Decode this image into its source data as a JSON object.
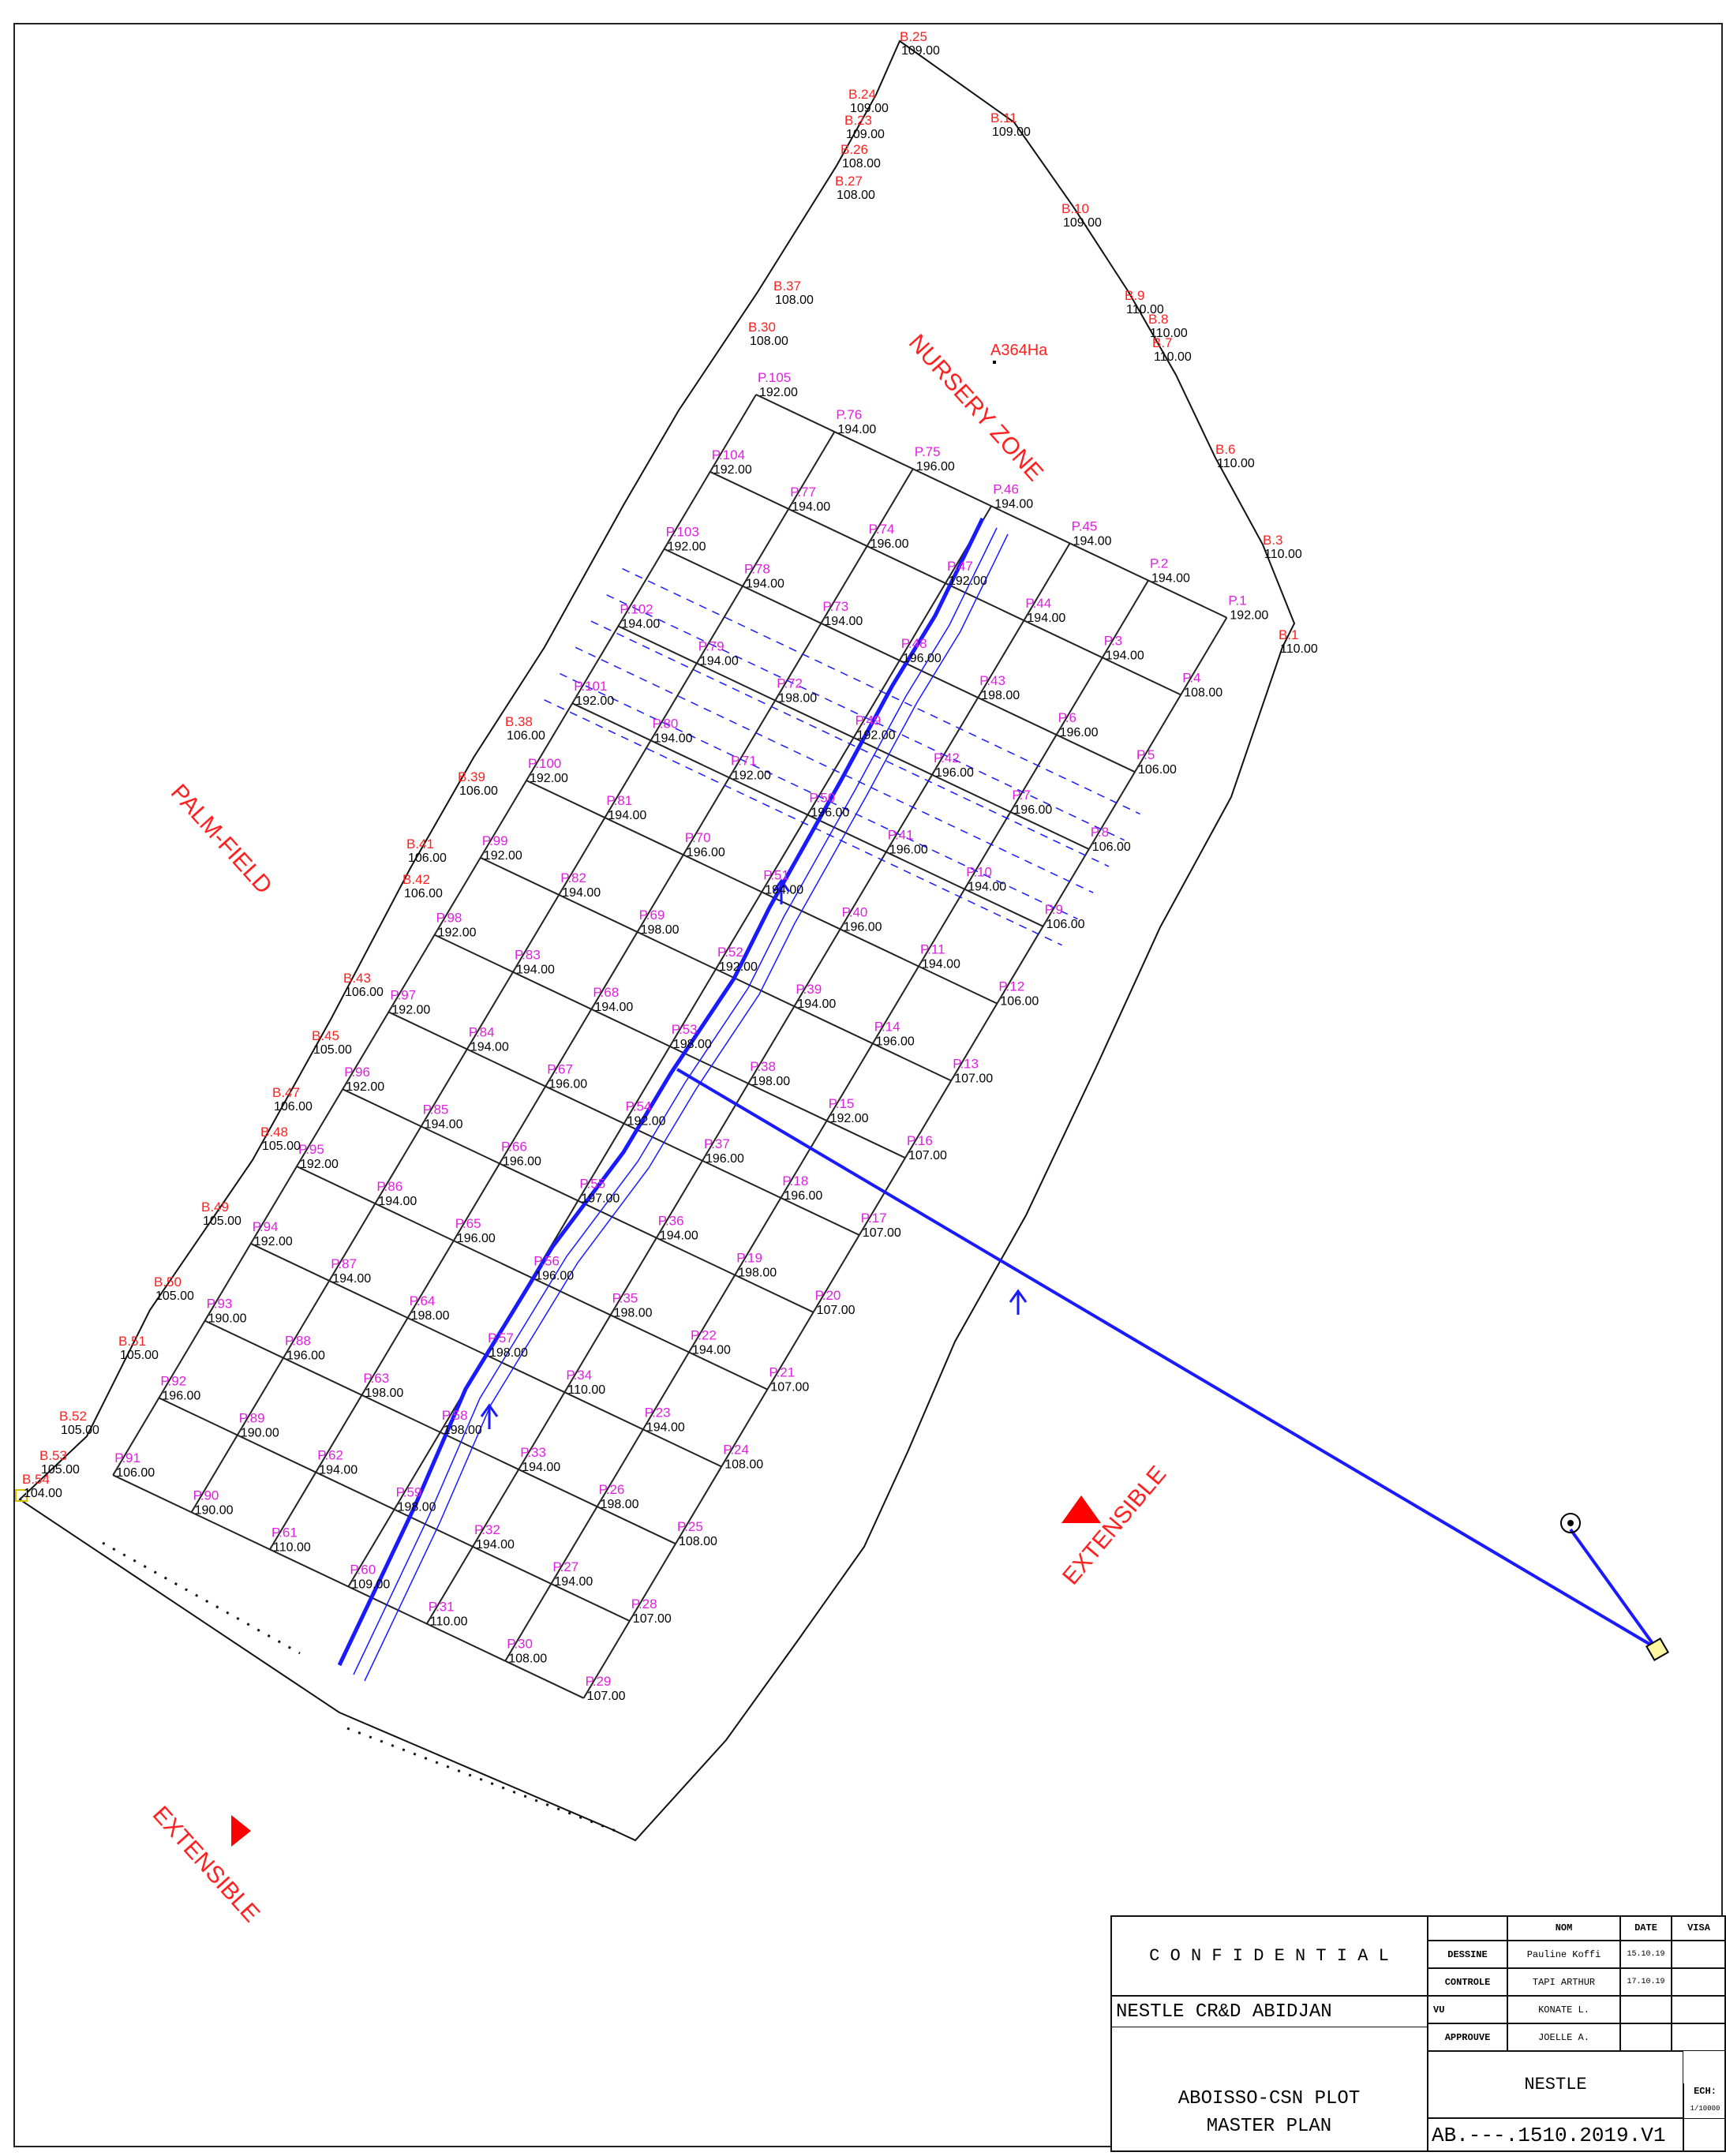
{
  "zones": {
    "nursery": "NURSERY ZONE",
    "palm_field": "PALM-FIELD",
    "extensible_right": "EXTENSIBLE",
    "extensible_left": "EXTENSIBLE",
    "area": "A364Ha"
  },
  "title_block": {
    "confidential": "C O N F I D E N T I A L",
    "client_site": "NESTLE CR&D ABIDJAN",
    "plot_title_1": "ABOISSO-CSN PLOT",
    "plot_title_2": "MASTER PLAN",
    "header_nom": "NOM",
    "header_date": "DATE",
    "header_visa": "VISA",
    "row1_role": "DESSINE",
    "row1_name": "Pauline Koffi",
    "row1_date": "15.10.19",
    "row2_role": "CONTROLE",
    "row2_name": "TAPI ARTHUR",
    "row2_date": "17.10.19",
    "row3_role": "VU",
    "row3_name": "KONATE L.",
    "row4_role": "APPROUVE",
    "row4_name": "JOELLE A.",
    "client": "NESTLE",
    "scale_label": "ECH:",
    "scale_value": "1/10000",
    "drawing_number": "AB.---.1510.2019.V1"
  },
  "boundary_points": [
    {
      "id": "B.25",
      "elev": "109.00"
    },
    {
      "id": "B.24",
      "elev": "109.00"
    },
    {
      "id": "B.23",
      "elev": "109.00"
    },
    {
      "id": "B.26",
      "elev": "108.00"
    },
    {
      "id": "B.27",
      "elev": "108.00"
    },
    {
      "id": "B.11",
      "elev": "109.00"
    },
    {
      "id": "B.10",
      "elev": "109.00"
    },
    {
      "id": "B.9",
      "elev": "110.00"
    },
    {
      "id": "B.8",
      "elev": "110.00"
    },
    {
      "id": "B.7",
      "elev": "110.00"
    },
    {
      "id": "B.6",
      "elev": "110.00"
    },
    {
      "id": "B.3",
      "elev": "110.00"
    },
    {
      "id": "B.1",
      "elev": "110.00"
    },
    {
      "id": "B.37",
      "elev": "108.00"
    },
    {
      "id": "B.30",
      "elev": "108.00"
    },
    {
      "id": "B.38",
      "elev": "106.00"
    },
    {
      "id": "B.39",
      "elev": "106.00"
    },
    {
      "id": "B.41",
      "elev": "106.00"
    },
    {
      "id": "B.42",
      "elev": "106.00"
    },
    {
      "id": "B.43",
      "elev": "106.00"
    },
    {
      "id": "B.45",
      "elev": "105.00"
    },
    {
      "id": "B.47",
      "elev": "106.00"
    },
    {
      "id": "B.48",
      "elev": "105.00"
    },
    {
      "id": "B.49",
      "elev": "105.00"
    },
    {
      "id": "B.50",
      "elev": "105.00"
    },
    {
      "id": "B.51",
      "elev": "105.00"
    },
    {
      "id": "B.52",
      "elev": "105.00"
    },
    {
      "id": "B.53",
      "elev": "105.00"
    },
    {
      "id": "B.54",
      "elev": "104.00"
    }
  ],
  "grid_points": [
    {
      "id": "P.105",
      "elev": "192.00"
    },
    {
      "id": "P.76",
      "elev": "194.00"
    },
    {
      "id": "P.75",
      "elev": "196.00"
    },
    {
      "id": "P.46",
      "elev": "194.00"
    },
    {
      "id": "P.45",
      "elev": "194.00"
    },
    {
      "id": "P.2",
      "elev": "194.00"
    },
    {
      "id": "P.1",
      "elev": "192.00"
    },
    {
      "id": "P.104",
      "elev": "192.00"
    },
    {
      "id": "P.77",
      "elev": "194.00"
    },
    {
      "id": "P.74",
      "elev": "196.00"
    },
    {
      "id": "P.47",
      "elev": "192.00"
    },
    {
      "id": "P.44",
      "elev": "194.00"
    },
    {
      "id": "P.3",
      "elev": "194.00"
    },
    {
      "id": "P.4",
      "elev": "108.00"
    },
    {
      "id": "P.103",
      "elev": "192.00"
    },
    {
      "id": "P.78",
      "elev": "194.00"
    },
    {
      "id": "P.73",
      "elev": "194.00"
    },
    {
      "id": "P.48",
      "elev": "196.00"
    },
    {
      "id": "P.43",
      "elev": "198.00"
    },
    {
      "id": "P.6",
      "elev": "196.00"
    },
    {
      "id": "P.5",
      "elev": "106.00"
    },
    {
      "id": "P.102",
      "elev": "194.00"
    },
    {
      "id": "P.79",
      "elev": "194.00"
    },
    {
      "id": "P.72",
      "elev": "198.00"
    },
    {
      "id": "P.49",
      "elev": "192.00"
    },
    {
      "id": "P.42",
      "elev": "196.00"
    },
    {
      "id": "P.7",
      "elev": "196.00"
    },
    {
      "id": "P.8",
      "elev": "106.00"
    },
    {
      "id": "P.101",
      "elev": "192.00"
    },
    {
      "id": "P.80",
      "elev": "194.00"
    },
    {
      "id": "P.71",
      "elev": "192.00"
    },
    {
      "id": "P.50",
      "elev": "196.00"
    },
    {
      "id": "P.41",
      "elev": "196.00"
    },
    {
      "id": "P.10",
      "elev": "194.00"
    },
    {
      "id": "P.9",
      "elev": "106.00"
    },
    {
      "id": "P.100",
      "elev": "192.00"
    },
    {
      "id": "P.81",
      "elev": "194.00"
    },
    {
      "id": "P.70",
      "elev": "196.00"
    },
    {
      "id": "P.51",
      "elev": "194.00"
    },
    {
      "id": "P.40",
      "elev": "196.00"
    },
    {
      "id": "P.11",
      "elev": "194.00"
    },
    {
      "id": "P.12",
      "elev": "106.00"
    },
    {
      "id": "P.99",
      "elev": "192.00"
    },
    {
      "id": "P.82",
      "elev": "194.00"
    },
    {
      "id": "P.69",
      "elev": "198.00"
    },
    {
      "id": "P.52",
      "elev": "192.00"
    },
    {
      "id": "P.39",
      "elev": "194.00"
    },
    {
      "id": "P.14",
      "elev": "196.00"
    },
    {
      "id": "P.13",
      "elev": "107.00"
    },
    {
      "id": "P.98",
      "elev": "192.00"
    },
    {
      "id": "P.83",
      "elev": "194.00"
    },
    {
      "id": "P.68",
      "elev": "194.00"
    },
    {
      "id": "P.53",
      "elev": "198.00"
    },
    {
      "id": "P.38",
      "elev": "198.00"
    },
    {
      "id": "P.15",
      "elev": "192.00"
    },
    {
      "id": "P.16",
      "elev": "107.00"
    },
    {
      "id": "P.97",
      "elev": "192.00"
    },
    {
      "id": "P.84",
      "elev": "194.00"
    },
    {
      "id": "P.67",
      "elev": "196.00"
    },
    {
      "id": "P.54",
      "elev": "192.00"
    },
    {
      "id": "P.37",
      "elev": "196.00"
    },
    {
      "id": "P.18",
      "elev": "196.00"
    },
    {
      "id": "P.17",
      "elev": "107.00"
    },
    {
      "id": "P.96",
      "elev": "192.00"
    },
    {
      "id": "P.85",
      "elev": "194.00"
    },
    {
      "id": "P.66",
      "elev": "196.00"
    },
    {
      "id": "P.55",
      "elev": "197.00"
    },
    {
      "id": "P.36",
      "elev": "194.00"
    },
    {
      "id": "P.19",
      "elev": "198.00"
    },
    {
      "id": "P.20",
      "elev": "107.00"
    },
    {
      "id": "P.95",
      "elev": "192.00"
    },
    {
      "id": "P.86",
      "elev": "194.00"
    },
    {
      "id": "P.65",
      "elev": "196.00"
    },
    {
      "id": "P.56",
      "elev": "196.00"
    },
    {
      "id": "P.35",
      "elev": "198.00"
    },
    {
      "id": "P.22",
      "elev": "194.00"
    },
    {
      "id": "P.21",
      "elev": "107.00"
    },
    {
      "id": "P.94",
      "elev": "192.00"
    },
    {
      "id": "P.87",
      "elev": "194.00"
    },
    {
      "id": "P.64",
      "elev": "198.00"
    },
    {
      "id": "P.57",
      "elev": "198.00"
    },
    {
      "id": "P.34",
      "elev": "110.00"
    },
    {
      "id": "P.23",
      "elev": "194.00"
    },
    {
      "id": "P.24",
      "elev": "108.00"
    },
    {
      "id": "P.93",
      "elev": "190.00"
    },
    {
      "id": "P.88",
      "elev": "196.00"
    },
    {
      "id": "P.63",
      "elev": "198.00"
    },
    {
      "id": "P.58",
      "elev": "198.00"
    },
    {
      "id": "P.33",
      "elev": "194.00"
    },
    {
      "id": "P.26",
      "elev": "198.00"
    },
    {
      "id": "P.25",
      "elev": "108.00"
    },
    {
      "id": "P.92",
      "elev": "196.00"
    },
    {
      "id": "P.89",
      "elev": "190.00"
    },
    {
      "id": "P.62",
      "elev": "194.00"
    },
    {
      "id": "P.59",
      "elev": "198.00"
    },
    {
      "id": "P.32",
      "elev": "194.00"
    },
    {
      "id": "P.27",
      "elev": "194.00"
    },
    {
      "id": "P.28",
      "elev": "107.00"
    },
    {
      "id": "P.91",
      "elev": "106.00"
    },
    {
      "id": "P.90",
      "elev": "190.00"
    },
    {
      "id": "P.61",
      "elev": "110.00"
    },
    {
      "id": "P.60",
      "elev": "109.00"
    },
    {
      "id": "P.31",
      "elev": "110.00"
    },
    {
      "id": "P.30",
      "elev": "108.00"
    },
    {
      "id": "P.29",
      "elev": "107.00"
    }
  ],
  "colors": {
    "boundary": "#111111",
    "grid": "#222222",
    "pipe": "#1a1aff",
    "label_red": "#ff2020",
    "label_magenta": "#e020e0"
  }
}
